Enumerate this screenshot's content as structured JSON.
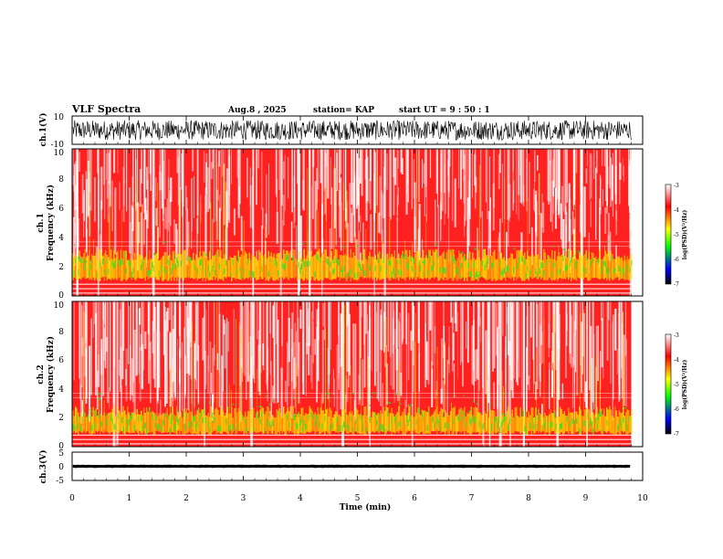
{
  "header": {
    "title": "VLF Spectra",
    "date": "Aug.8 , 2025",
    "station": "station= KAP",
    "start": "start UT = 9 : 50 : 1"
  },
  "colors": {
    "spectrogram_background": "#ff2020",
    "waveform": "#000000",
    "axis": "#000000",
    "colorbar_stops": [
      "#ffffff",
      "#ff0000",
      "#ffff00",
      "#00ff00",
      "#0000ff",
      "#000000"
    ]
  },
  "chart_data": [
    {
      "type": "line",
      "panel": "ch1-waveform",
      "ylabel": "ch.1(V)",
      "ylim": [
        -10,
        10
      ],
      "yticks": [
        "10",
        "-10"
      ],
      "xlim": [
        0,
        10
      ],
      "data_end_min": 9.8,
      "series": [
        {
          "values_range": [
            -7,
            7
          ]
        }
      ]
    },
    {
      "type": "heatmap",
      "panel": "ch1-spectrogram",
      "ylabel": "ch.1",
      "ylabel2": "Frequency (kHz)",
      "ylim": [
        0,
        10
      ],
      "yticks": [
        "0",
        "2",
        "4",
        "6",
        "8",
        "10"
      ],
      "xlim": [
        0,
        10
      ],
      "colorbar": {
        "label": "log(PSD)(V²/Hz)",
        "range": [
          -7,
          -3
        ],
        "ticks": [
          "-3",
          "-4",
          "-5",
          "-6",
          "-7"
        ]
      }
    },
    {
      "type": "heatmap",
      "panel": "ch2-spectrogram",
      "ylabel": "ch.2",
      "ylabel2": "Frequency (kHz)",
      "ylim": [
        0,
        10
      ],
      "yticks": [
        "0",
        "2",
        "4",
        "6",
        "8",
        "10"
      ],
      "xlim": [
        0,
        10
      ],
      "colorbar": {
        "label": "log(PSD)(V²/Hz)",
        "range": [
          -7,
          -3
        ],
        "ticks": [
          "-3",
          "-4",
          "-5",
          "-6",
          "-7"
        ]
      }
    },
    {
      "type": "line",
      "panel": "ch3-waveform",
      "ylabel": "ch.3(V)",
      "ylim": [
        -5,
        5
      ],
      "yticks": [
        "5",
        "0",
        "-5"
      ],
      "xlim": [
        0,
        10
      ],
      "data_end_min": 9.8,
      "series": [
        {
          "values_range": [
            -0.5,
            0.5
          ]
        }
      ]
    }
  ],
  "xaxis": {
    "label": "Time (min)",
    "ticks": [
      "0",
      "1",
      "2",
      "3",
      "4",
      "5",
      "6",
      "7",
      "8",
      "9",
      "10"
    ]
  }
}
